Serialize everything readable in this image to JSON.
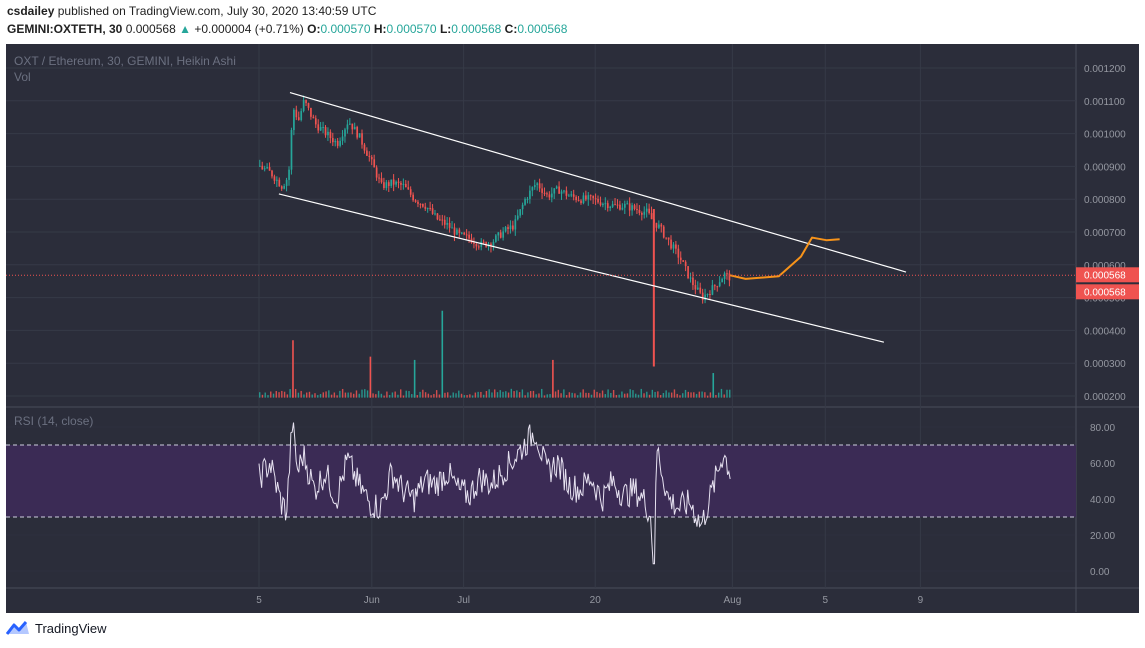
{
  "header": {
    "author": "csdailey",
    "published_text": "published on TradingView.com, July 30, 2020 13:40:59 UTC",
    "symbol": "GEMINI:OXTETH, 30",
    "last_price": "0.000568",
    "change_arrow": "▲",
    "change": "+0.000004 (+0.71%)",
    "o_label": "O:",
    "o": "0.000570",
    "h_label": "H:",
    "h": "0.000570",
    "l_label": "L:",
    "l": "0.000568",
    "c_label": "C:",
    "c": "0.000568"
  },
  "footer": {
    "brand": "TradingView"
  },
  "colors": {
    "background": "#2b2d3a",
    "up": "#26a69a",
    "down": "#ef5350",
    "rsi_band": "#3b2b55",
    "rsi_line": "#e6e1f0",
    "projection": "#f7931a",
    "channel": "#ffffff",
    "price_tag": "#ef5350"
  },
  "chart_data": [
    {
      "type": "candlestick",
      "title": "OXT / Ethereum, 30, GEMINI, Heikin Ashi",
      "volume_label": "Vol",
      "x_ticks": [
        "5",
        "Jun",
        "Jul",
        "20",
        "Aug",
        "5",
        "9"
      ],
      "x_range_days": [
        -4,
        70
      ],
      "y_ticks": [
        "0.001200",
        "0.001100",
        "0.001000",
        "0.000900",
        "0.000800",
        "0.000700",
        "0.000600",
        "0.000500",
        "0.000400",
        "0.000300",
        "0.000200"
      ],
      "ylim": [
        0.000185,
        0.001285
      ],
      "price_path": [
        [
          0,
          0.0009
        ],
        [
          1,
          0.00088
        ],
        [
          2,
          0.00084
        ],
        [
          2.6,
          0.00087
        ],
        [
          3,
          0.00108
        ],
        [
          3.5,
          0.00104
        ],
        [
          4,
          0.0011
        ],
        [
          5,
          0.00103
        ],
        [
          6,
          0.001
        ],
        [
          7,
          0.00097
        ],
        [
          8,
          0.00104
        ],
        [
          9,
          0.00099
        ],
        [
          10,
          0.00092
        ],
        [
          11,
          0.00084
        ],
        [
          12,
          0.00085
        ],
        [
          13,
          0.00084
        ],
        [
          14,
          0.0008
        ],
        [
          15,
          0.00078
        ],
        [
          16,
          0.00074
        ],
        [
          17,
          0.00072
        ],
        [
          18,
          0.00069
        ],
        [
          19,
          0.00068
        ],
        [
          20,
          0.00066
        ],
        [
          21,
          0.00067
        ],
        [
          22,
          0.0007
        ],
        [
          23,
          0.00072
        ],
        [
          24,
          0.0008
        ],
        [
          25,
          0.00085
        ],
        [
          26,
          0.00081
        ],
        [
          27,
          0.00083
        ],
        [
          28,
          0.00081
        ],
        [
          29,
          0.0008
        ],
        [
          30,
          0.0008
        ],
        [
          31,
          0.00079
        ],
        [
          32,
          0.00078
        ],
        [
          33,
          0.00078
        ],
        [
          34,
          0.00077
        ],
        [
          35,
          0.00076
        ],
        [
          35.6,
          0.00073
        ],
        [
          36,
          0.00072
        ],
        [
          37,
          0.00067
        ],
        [
          38,
          0.00062
        ],
        [
          39,
          0.00055
        ],
        [
          40,
          0.0005
        ],
        [
          41,
          0.00053
        ],
        [
          42,
          0.00057
        ],
        [
          42.6,
          0.00056
        ]
      ],
      "wick_down": {
        "x": 35.7,
        "low": 0.00029
      },
      "volume_spikes": [
        [
          3,
          0.00037
        ],
        [
          16.5,
          0.00046
        ],
        [
          10,
          0.00032
        ],
        [
          14,
          0.00031
        ],
        [
          26.5,
          0.00031
        ],
        [
          41,
          0.00027
        ]
      ],
      "volume_base": 0.000195,
      "channel_upper": [
        [
          2.8,
          0.001125
        ],
        [
          58.5,
          0.000578
        ]
      ],
      "channel_lower": [
        [
          1.8,
          0.000816
        ],
        [
          56.5,
          0.000364
        ]
      ],
      "projection_path": [
        [
          42.6,
          0.000568
        ],
        [
          44,
          0.000557
        ],
        [
          47,
          0.000565
        ],
        [
          49,
          0.000625
        ],
        [
          50,
          0.000683
        ],
        [
          51.3,
          0.000675
        ],
        [
          52.5,
          0.000678
        ]
      ],
      "last_price": 0.000568,
      "price_tags": [
        "0.000568",
        "0.000568"
      ]
    },
    {
      "type": "line",
      "title": "RSI (14, close)",
      "y_ticks": [
        "80.00",
        "60.00",
        "40.00",
        "20.00",
        "0.00"
      ],
      "ylim": [
        -2,
        88
      ],
      "band": [
        30,
        70
      ],
      "rsi_path": [
        [
          0,
          52
        ],
        [
          1,
          60
        ],
        [
          2,
          38
        ],
        [
          2.5,
          33
        ],
        [
          3,
          82
        ],
        [
          3.5,
          55
        ],
        [
          4,
          65
        ],
        [
          5,
          45
        ],
        [
          6,
          55
        ],
        [
          7,
          40
        ],
        [
          8,
          62
        ],
        [
          9,
          48
        ],
        [
          10,
          38
        ],
        [
          11,
          35
        ],
        [
          12,
          55
        ],
        [
          13,
          45
        ],
        [
          14,
          40
        ],
        [
          15,
          50
        ],
        [
          16,
          48
        ],
        [
          17,
          55
        ],
        [
          18,
          45
        ],
        [
          19,
          42
        ],
        [
          20,
          52
        ],
        [
          21,
          48
        ],
        [
          22,
          55
        ],
        [
          23,
          62
        ],
        [
          24,
          70
        ],
        [
          25,
          78
        ],
        [
          26,
          55
        ],
        [
          27,
          60
        ],
        [
          28,
          48
        ],
        [
          29,
          45
        ],
        [
          30,
          52
        ],
        [
          31,
          40
        ],
        [
          32,
          50
        ],
        [
          33,
          42
        ],
        [
          34,
          45
        ],
        [
          35,
          38
        ],
        [
          35.4,
          30
        ],
        [
          35.7,
          4
        ],
        [
          36,
          68
        ],
        [
          37,
          40
        ],
        [
          38,
          35
        ],
        [
          39,
          38
        ],
        [
          40,
          25
        ],
        [
          41,
          45
        ],
        [
          42,
          66
        ],
        [
          42.6,
          55
        ]
      ]
    }
  ]
}
